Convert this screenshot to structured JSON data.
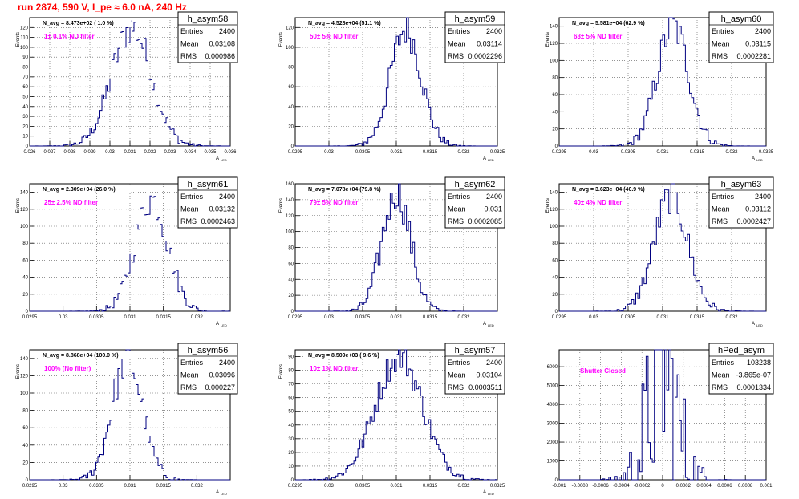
{
  "page_title": "run 2874,   590 V, I_pe ≈ 6.0 nA, 240 Hz",
  "chart_data": [
    {
      "type": "histogram",
      "name": "h_asym58",
      "title_line": "N_avg = 8.473e+02 ( 1.0 %)",
      "annotation": "1± 0.1% ND filter",
      "stats": {
        "Entries": "2400",
        "Mean": "0.03108",
        "RMS": "0.000986"
      },
      "ylabel": "Events",
      "xlabel": "A_LED",
      "xlim": [
        0.026,
        0.036
      ],
      "xticks": [
        "0.026",
        "0.027",
        "0.028",
        "0.029",
        "0.03",
        "0.031",
        "0.032",
        "0.033",
        "0.034",
        "0.035",
        "0.036"
      ],
      "ylim": [
        0,
        130
      ],
      "yticks": [
        0,
        10,
        20,
        30,
        40,
        50,
        60,
        70,
        80,
        90,
        100,
        110,
        120
      ],
      "mean": 0.03108,
      "sigma": 0.000986,
      "peak": 120
    },
    {
      "type": "histogram",
      "name": "h_asym59",
      "title_line": "N_avg = 4.528e+04 (51.1 %)",
      "annotation": "50± 5% ND filter",
      "stats": {
        "Entries": "2400",
        "Mean": "0.03114",
        "RMS": "0.0002296"
      },
      "ylabel": "Events",
      "xlabel": "A_LED",
      "xlim": [
        0.0295,
        0.0325
      ],
      "xticks": [
        "0.0295",
        "0.03",
        "0.0305",
        "0.031",
        "0.0315",
        "0.032",
        "0.0325"
      ],
      "ylim": [
        0,
        130
      ],
      "yticks": [
        0,
        20,
        40,
        60,
        80,
        100,
        120
      ],
      "mean": 0.03114,
      "sigma": 0.0002296,
      "peak": 118
    },
    {
      "type": "histogram",
      "name": "h_asym60",
      "title_line": "N_avg = 5.581e+04 (62.9 %)",
      "annotation": "63± 5% ND filter",
      "stats": {
        "Entries": "2400",
        "Mean": "0.03115",
        "RMS": "0.0002281"
      },
      "ylabel": "Events",
      "xlabel": "A_LED",
      "xlim": [
        0.0295,
        0.0325
      ],
      "xticks": [
        "0.0295",
        "0.03",
        "0.0305",
        "0.031",
        "0.0315",
        "0.032",
        "0.0325"
      ],
      "ylim": [
        0,
        150
      ],
      "yticks": [
        0,
        20,
        40,
        60,
        80,
        100,
        120,
        140
      ],
      "mean": 0.03115,
      "sigma": 0.0002281,
      "peak": 140
    },
    {
      "type": "histogram",
      "name": "h_asym61",
      "title_line": "N_avg = 2.309e+04 (26.0 %)",
      "annotation": "25± 2.5% ND filter",
      "stats": {
        "Entries": "2400",
        "Mean": "0.03132",
        "RMS": "0.0002463"
      },
      "ylabel": "Events",
      "xlabel": "A_LED",
      "xlim": [
        0.0295,
        0.0325
      ],
      "xticks": [
        "0.0295",
        "0.03",
        "0.0305",
        "0.031",
        "0.0315",
        "0.032"
      ],
      "ylim": [
        0,
        150
      ],
      "yticks": [
        0,
        20,
        40,
        60,
        80,
        100,
        120,
        140
      ],
      "mean": 0.03132,
      "sigma": 0.0002463,
      "peak": 132
    },
    {
      "type": "histogram",
      "name": "h_asym62",
      "title_line": "N_avg = 7.078e+04 (79.8 %)",
      "annotation": "79± 5% ND filter",
      "stats": {
        "Entries": "2400",
        "Mean": "0.031",
        "RMS": "0.0002085"
      },
      "ylabel": "Events",
      "xlabel": "A_LED",
      "xlim": [
        0.0295,
        0.0325
      ],
      "xticks": [
        "0.0295",
        "0.03",
        "0.0305",
        "0.031",
        "0.0315",
        "0.032"
      ],
      "ylim": [
        0,
        160
      ],
      "yticks": [
        0,
        20,
        40,
        60,
        80,
        100,
        120,
        140,
        160
      ],
      "mean": 0.031,
      "sigma": 0.0002085,
      "peak": 150
    },
    {
      "type": "histogram",
      "name": "h_asym63",
      "title_line": "N_avg = 3.623e+04 (40.9 %)",
      "annotation": "40± 4% ND filter",
      "stats": {
        "Entries": "2400",
        "Mean": "0.03112",
        "RMS": "0.0002427"
      },
      "ylabel": "Events",
      "xlabel": "A_LED",
      "xlim": [
        0.0295,
        0.0325
      ],
      "xticks": [
        "0.0295",
        "0.03",
        "0.0305",
        "0.031",
        "0.0315",
        "0.032"
      ],
      "ylim": [
        0,
        150
      ],
      "yticks": [
        0,
        20,
        40,
        60,
        80,
        100,
        120,
        140
      ],
      "mean": 0.03112,
      "sigma": 0.0002427,
      "peak": 135
    },
    {
      "type": "histogram",
      "name": "h_asym56",
      "title_line": "N_avg = 8.868e+04 (100.0 %)",
      "annotation": "100% (No filter)",
      "stats": {
        "Entries": "2400",
        "Mean": "0.03096",
        "RMS": "0.000227"
      },
      "ylabel": "Events",
      "xlabel": "A_LED",
      "xlim": [
        0.0295,
        0.0325
      ],
      "xticks": [
        "0.0295",
        "0.03",
        "0.0305",
        "0.031",
        "0.0315",
        "0.032"
      ],
      "ylim": [
        0,
        150
      ],
      "yticks": [
        0,
        20,
        40,
        60,
        80,
        100,
        120,
        140
      ],
      "mean": 0.03096,
      "sigma": 0.000227,
      "peak": 140
    },
    {
      "type": "histogram",
      "name": "h_asym57",
      "title_line": "N_avg = 8.509e+03 ( 9.6 %)",
      "annotation": "10± 1% ND filter",
      "stats": {
        "Entries": "2400",
        "Mean": "0.03104",
        "RMS": "0.0003511"
      },
      "ylabel": "Events",
      "xlabel": "A_LED",
      "xlim": [
        0.0295,
        0.0325
      ],
      "xticks": [
        "0.0295",
        "0.03",
        "0.0305",
        "0.031",
        "0.0315",
        "0.032",
        "0.0325"
      ],
      "ylim": [
        0,
        95
      ],
      "yticks": [
        0,
        10,
        20,
        30,
        40,
        50,
        60,
        70,
        80,
        90
      ],
      "mean": 0.03104,
      "sigma": 0.0003511,
      "peak": 90
    },
    {
      "type": "histogram",
      "name": "hPed_asym",
      "title_line": "",
      "annotation": "Shutter Closed",
      "stats": {
        "Entries": "103238",
        "Mean": "-3.865e-07",
        "RMS": "0.0001334"
      },
      "ylabel": "",
      "xlabel": "",
      "xlim": [
        -0.001,
        0.001
      ],
      "xticks": [
        "-0.001",
        "-0.0008",
        "-0.0006",
        "-0.0004",
        "-0.0002",
        "0",
        "0.0002",
        "0.0004",
        "0.0006",
        "0.0008",
        "0.001"
      ],
      "ylim": [
        0,
        6900
      ],
      "yticks": [
        0,
        1000,
        2000,
        3000,
        4000,
        5000,
        6000
      ],
      "mean": 0.0,
      "sigma": 0.0001334,
      "peak": 5700
    }
  ],
  "colors": {
    "line": "#000080",
    "annotation": "#ff00ff",
    "title": "#ff0000",
    "grid": "#555555"
  }
}
